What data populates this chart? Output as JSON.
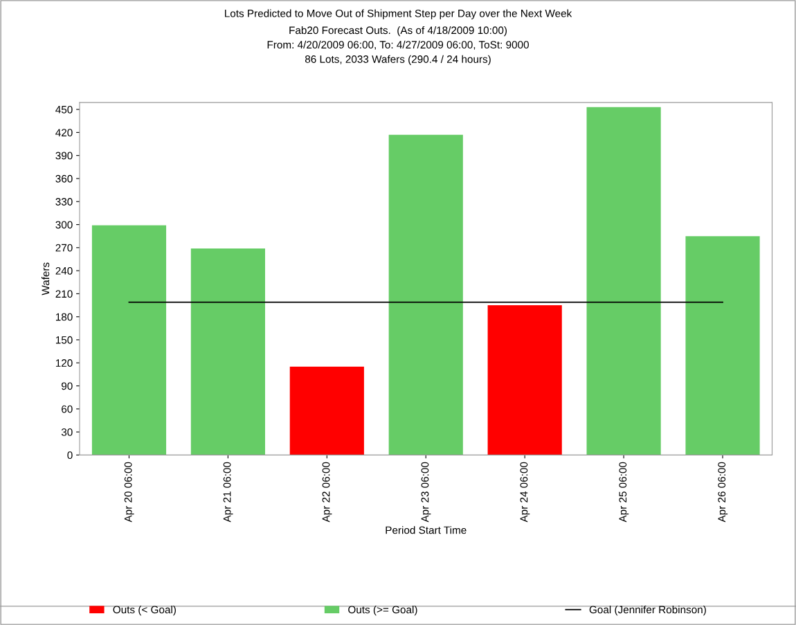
{
  "chart_data": {
    "type": "bar",
    "title": "Lots Predicted to Move Out of Shipment Step per Day over the Next Week",
    "subtitle": "Fab20 Forecast Outs.  (As of 4/18/2009 10:00)\nFrom: 4/20/2009 06:00, To: 4/27/2009 06:00, ToSt: 9000\n86 Lots, 2033 Wafers (290.4 / 24 hours)",
    "xlabel": "Period Start Time",
    "ylabel": "Wafers",
    "categories": [
      "Apr 20 06:00",
      "Apr 21 06:00",
      "Apr 22 06:00",
      "Apr 23 06:00",
      "Apr 24 06:00",
      "Apr 25 06:00",
      "Apr 26 06:00"
    ],
    "series": [
      {
        "name": "Outs (< Goal)",
        "color": "#ff0000",
        "values": [
          null,
          null,
          115,
          null,
          195,
          null,
          null
        ]
      },
      {
        "name": "Outs (>= Goal)",
        "color": "#66cc66",
        "values": [
          299,
          269,
          null,
          417,
          null,
          453,
          285
        ]
      },
      {
        "name": "Goal (Jennifer Robinson)",
        "type": "line",
        "color": "#000000",
        "values": [
          199,
          199,
          199,
          199,
          199,
          199,
          199
        ]
      }
    ],
    "ylim": [
      0,
      459
    ],
    "yticks": [
      0,
      30,
      60,
      90,
      120,
      150,
      180,
      210,
      240,
      270,
      300,
      330,
      360,
      390,
      420,
      450
    ],
    "grid": false,
    "legend": "bottom",
    "marker": "none"
  }
}
